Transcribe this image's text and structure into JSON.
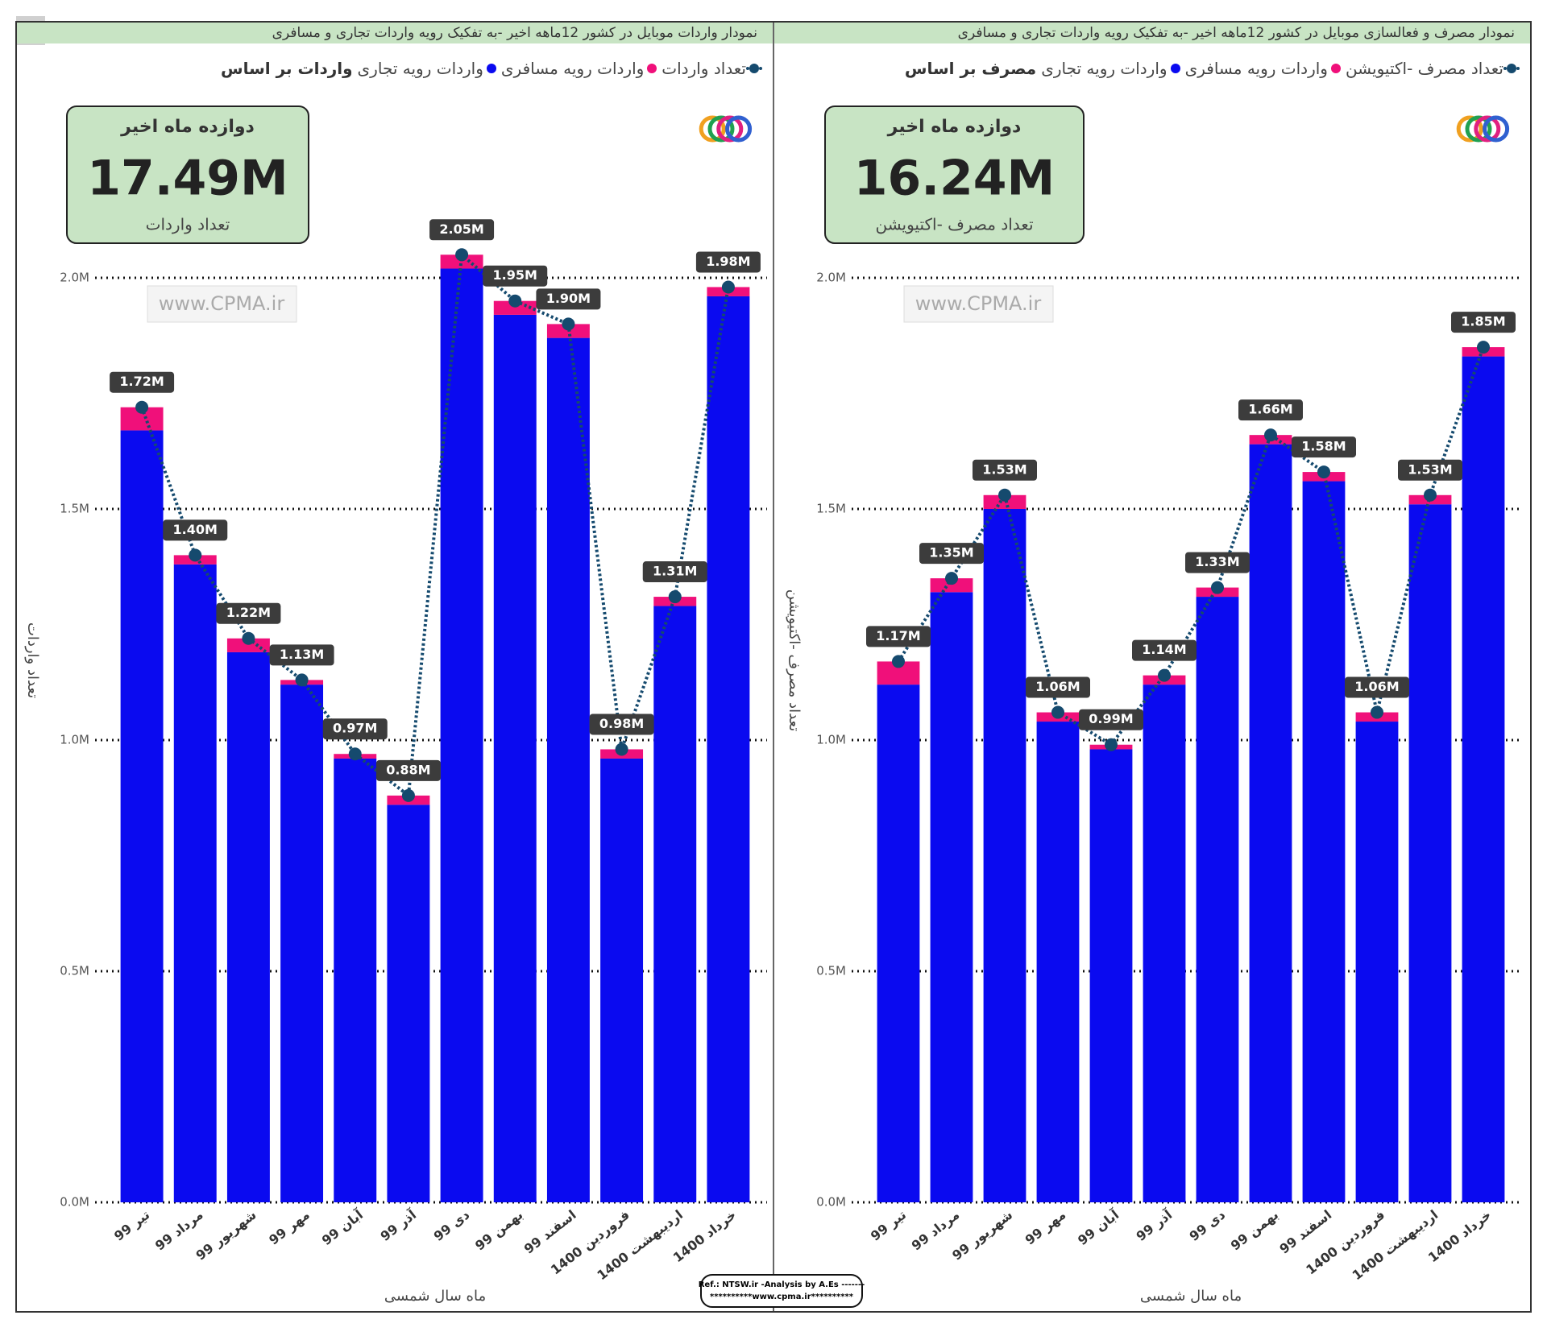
{
  "chart_data": [
    {
      "type": "combo",
      "title": "نمودار واردات موبایل در کشور 12ماهه اخیر -به تفکیک رویه واردات تجاری و مسافری",
      "legend_title": "واردات بر اساس",
      "kpi": {
        "title": "دوازده ماه اخیر",
        "value": "17.49M",
        "label": "تعداد واردات"
      },
      "watermark": "www.CPMA.ir",
      "x_label": "ماه سال شمسی",
      "y_label": "تعداد واردات",
      "categories": [
        "تیر 99",
        "مرداد 99",
        "شهریور 99",
        "مهر 99",
        "آبان 99",
        "آذر 99",
        "دی 99",
        "بهمن 99",
        "اسفند 99",
        "فروردین 1400",
        "اردیبهشت 1400",
        "خرداد 1400"
      ],
      "series": [
        {
          "name": "واردات رویه تجاری",
          "kind": "bar",
          "color": "#0a0af0",
          "values": [
            1.67,
            1.38,
            1.19,
            1.12,
            0.96,
            0.86,
            2.02,
            1.92,
            1.87,
            0.96,
            1.29,
            1.96
          ]
        },
        {
          "name": "واردات رویه مسافری",
          "kind": "bar",
          "color": "#f0107a",
          "values": [
            0.05,
            0.02,
            0.03,
            0.01,
            0.01,
            0.02,
            0.03,
            0.03,
            0.03,
            0.02,
            0.02,
            0.02
          ]
        },
        {
          "name": "تعداد واردات",
          "kind": "line",
          "color": "#154a6e",
          "values": [
            1.72,
            1.4,
            1.22,
            1.13,
            0.97,
            0.88,
            2.05,
            1.95,
            1.9,
            0.98,
            1.31,
            1.98
          ],
          "value_labels": [
            "1.72M",
            "1.40M",
            "1.22M",
            "1.13M",
            "0.97M",
            "0.88M",
            "2.05M",
            "1.95M",
            "1.90M",
            "0.98M",
            "1.31M",
            "1.98M"
          ]
        }
      ],
      "ylim": [
        0,
        2.1
      ],
      "yticks": [
        {
          "value": 0,
          "label": "0.0M"
        },
        {
          "value": 0.5,
          "label": "0.5M"
        },
        {
          "value": 1,
          "label": "1.0M"
        },
        {
          "value": 1.5,
          "label": "1.5M"
        },
        {
          "value": 2,
          "label": "2.0M"
        }
      ],
      "grid": true
    },
    {
      "type": "combo",
      "title": "نمودار مصرف و فعالسازی موبایل در کشور 12ماهه اخیر -به تفکیک رویه واردات تجاری و مسافری",
      "legend_title": "مصرف بر اساس",
      "kpi": {
        "title": "دوازده ماه اخیر",
        "value": "16.24M",
        "label": "تعداد مصرف -اکتیویشن"
      },
      "watermark": "www.CPMA.ir",
      "x_label": "ماه سال شمسی",
      "y_label": "تعداد مصرف -اکتیویشن",
      "categories": [
        "تیر 99",
        "مرداد 99",
        "شهریور 99",
        "مهر 99",
        "آبان 99",
        "آذر 99",
        "دی 99",
        "بهمن 99",
        "اسفند 99",
        "فروردین 1400",
        "اردیبهشت 1400",
        "خرداد 1400"
      ],
      "series": [
        {
          "name": "واردات رویه تجاری",
          "kind": "bar",
          "color": "#0a0af0",
          "values": [
            1.12,
            1.32,
            1.5,
            1.04,
            0.98,
            1.12,
            1.31,
            1.64,
            1.56,
            1.04,
            1.51,
            1.83
          ]
        },
        {
          "name": "واردات رویه مسافری",
          "kind": "bar",
          "color": "#f0107a",
          "values": [
            0.05,
            0.03,
            0.03,
            0.02,
            0.01,
            0.02,
            0.02,
            0.02,
            0.02,
            0.02,
            0.02,
            0.02
          ]
        },
        {
          "name": "تعداد مصرف -اکتیویشن",
          "kind": "line",
          "color": "#154a6e",
          "values": [
            1.17,
            1.35,
            1.53,
            1.06,
            0.99,
            1.14,
            1.33,
            1.66,
            1.58,
            1.06,
            1.53,
            1.85
          ],
          "value_labels": [
            "1.17M",
            "1.35M",
            "1.53M",
            "1.06M",
            "0.99M",
            "1.14M",
            "1.33M",
            "1.66M",
            "1.58M",
            "1.06M",
            "1.53M",
            "1.85M"
          ]
        }
      ],
      "ylim": [
        0,
        2.1
      ],
      "yticks": [
        {
          "value": 0,
          "label": "0.0M"
        },
        {
          "value": 0.5,
          "label": "0.5M"
        },
        {
          "value": 1,
          "label": "1.0M"
        },
        {
          "value": 1.5,
          "label": "1.5M"
        },
        {
          "value": 2,
          "label": "2.0M"
        }
      ],
      "grid": true
    }
  ],
  "footer": {
    "line1": "Ref.: NTSW.ir -Analysis by A.Es -------",
    "line2": "**********www.cpma.ir**********"
  }
}
